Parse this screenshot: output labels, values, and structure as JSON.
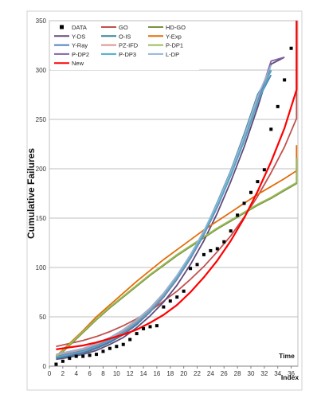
{
  "chart_data": {
    "type": "line",
    "title": "",
    "ylabel": "Cumulative Failures",
    "xlabel": [
      "Time",
      "Index"
    ],
    "xlim": [
      0,
      37
    ],
    "ylim": [
      0,
      350
    ],
    "xticks": [
      0,
      2,
      4,
      6,
      8,
      10,
      12,
      14,
      16,
      18,
      20,
      22,
      24,
      26,
      28,
      30,
      32,
      34,
      36
    ],
    "yticks": [
      0,
      50,
      100,
      150,
      200,
      250,
      300,
      350
    ],
    "grid": "horizontal",
    "legend_position": "top-left",
    "data_series": {
      "name": "DATA",
      "color": "#000000",
      "x": [
        1,
        2,
        3,
        4,
        5,
        6,
        7,
        8,
        9,
        10,
        11,
        12,
        13,
        14,
        15,
        16,
        17,
        18,
        19,
        20,
        21,
        22,
        23,
        24,
        25,
        26,
        27,
        28,
        29,
        30,
        31,
        32,
        33,
        34,
        35,
        36
      ],
      "y": [
        2,
        5,
        8,
        10,
        10,
        11,
        12,
        15,
        18,
        20,
        22,
        27,
        33,
        38,
        40,
        41,
        60,
        66,
        70,
        76,
        99,
        103,
        113,
        117,
        119,
        126,
        137,
        153,
        165,
        176,
        187,
        199,
        240,
        263,
        290,
        322
      ]
    },
    "series": [
      {
        "name": "GO",
        "color": "#c0504d",
        "y": [
          20,
          23,
          26,
          30,
          35,
          41,
          48,
          56,
          66,
          76,
          88,
          101,
          116,
          132,
          151,
          172,
          196,
          222,
          251,
          283,
          317,
          353
        ]
      },
      {
        "name": "HD-GO",
        "color": "#77933c",
        "y": [
          8,
          21,
          34,
          47,
          59,
          70,
          81,
          92,
          102,
          112,
          121,
          130,
          139,
          147,
          155,
          163,
          170,
          178,
          185,
          192,
          198,
          205,
          211
        ]
      },
      {
        "name": "Y-DS",
        "color": "#604a7b",
        "y": [
          7,
          9,
          12,
          16,
          22,
          29,
          39,
          51,
          65,
          82,
          103,
          127,
          155,
          187,
          222,
          262,
          306,
          313
        ]
      },
      {
        "name": "O-IS",
        "color": "#31859c",
        "y": [
          8,
          10,
          13,
          18,
          24,
          32,
          42,
          55,
          70,
          89,
          111,
          136,
          166,
          198,
          235,
          275,
          299
        ]
      },
      {
        "name": "Y-Exp",
        "color": "#e46c0a",
        "y": [
          10,
          23,
          36,
          50,
          62,
          74,
          86,
          97,
          108,
          118,
          128,
          138,
          147,
          156,
          165,
          174,
          182,
          190,
          198,
          206,
          214,
          221,
          224
        ]
      },
      {
        "name": "Y-Ray",
        "color": "#4f81bd",
        "y": [
          10,
          13,
          16,
          21,
          27,
          35,
          45,
          57,
          72,
          90,
          111,
          135,
          163,
          195,
          230,
          269,
          295
        ]
      },
      {
        "name": "PZ-IFD",
        "color": "#d99694",
        "y": [
          11,
          14,
          17,
          22,
          28,
          36,
          46,
          58,
          73,
          91,
          112,
          136,
          164,
          196,
          232,
          272,
          300
        ]
      },
      {
        "name": "P-DP1",
        "color": "#9bbb59",
        "y": [
          9,
          22,
          35,
          48,
          60,
          71,
          82,
          93,
          103,
          113,
          122,
          131,
          140,
          148,
          156,
          164,
          171,
          179,
          186,
          193,
          199,
          206,
          211
        ]
      },
      {
        "name": "P-DP2",
        "color": "#8064a2",
        "y": [
          9,
          11,
          14,
          19,
          25,
          33,
          43,
          55,
          70,
          88,
          109,
          133,
          161,
          193,
          228,
          267,
          309,
          313
        ]
      },
      {
        "name": "P-DP3",
        "color": "#4bacc6",
        "y": [
          9,
          12,
          15,
          20,
          26,
          34,
          44,
          56,
          71,
          89,
          110,
          134,
          162,
          193,
          228,
          267,
          300
        ]
      },
      {
        "name": "L-DP",
        "color": "#95b3d7",
        "y": [
          12,
          15,
          18,
          23,
          29,
          37,
          47,
          59,
          74,
          92,
          113,
          137,
          165,
          197,
          233,
          273,
          305
        ]
      },
      {
        "name": "New",
        "color": "#ff0000",
        "y": [
          17,
          19,
          21,
          24,
          28,
          32,
          37,
          44,
          52,
          62,
          75,
          90,
          107,
          127,
          150,
          177,
          207,
          241,
          280,
          324,
          350
        ]
      }
    ]
  }
}
